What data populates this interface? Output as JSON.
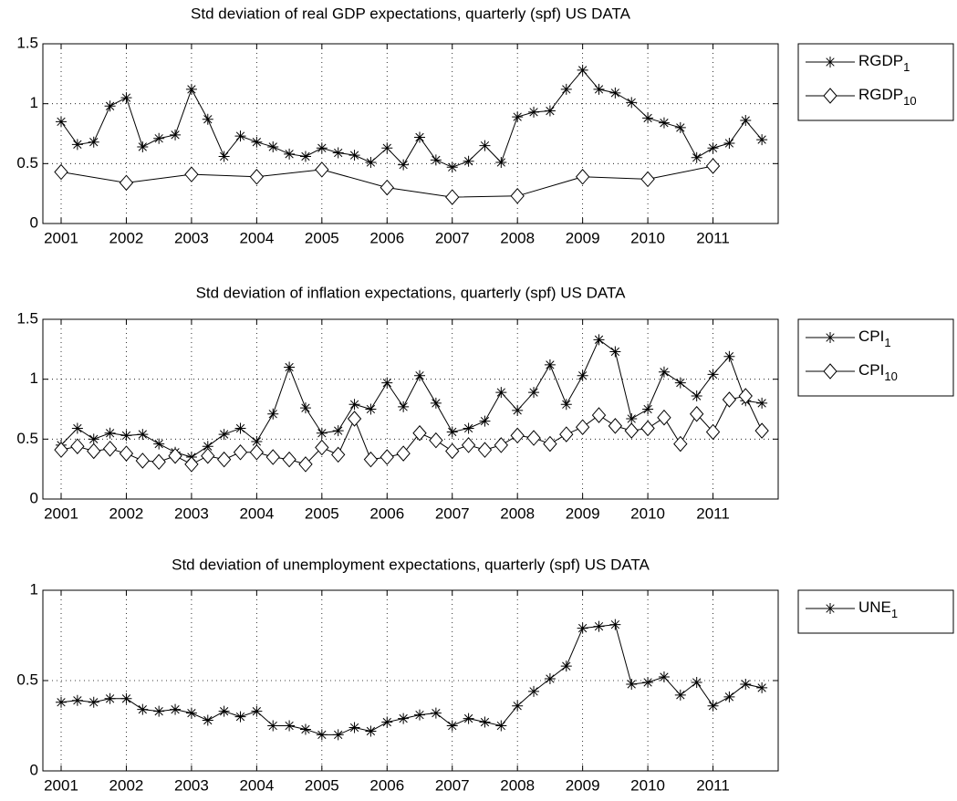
{
  "chart_data": [
    {
      "type": "line",
      "title": "Std deviation of real GDP expectations, quarterly (spf) US DATA",
      "xlim": [
        2000.72,
        2012
      ],
      "ylim": [
        0,
        1.5
      ],
      "xticks": [
        2001,
        2002,
        2003,
        2004,
        2005,
        2006,
        2007,
        2008,
        2009,
        2010,
        2011
      ],
      "yticks": [
        0,
        0.5,
        1,
        1.5
      ],
      "grid": true,
      "legend": "outside-right",
      "series": [
        {
          "name": "RGDP_1",
          "color": "#000000",
          "marker": "asterisk",
          "x": [
            2001,
            2001.25,
            2001.5,
            2001.75,
            2002,
            2002.25,
            2002.5,
            2002.75,
            2003,
            2003.25,
            2003.5,
            2003.75,
            2004,
            2004.25,
            2004.5,
            2004.75,
            2005,
            2005.25,
            2005.5,
            2005.75,
            2006,
            2006.25,
            2006.5,
            2006.75,
            2007,
            2007.25,
            2007.5,
            2007.75,
            2008,
            2008.25,
            2008.5,
            2008.75,
            2009,
            2009.25,
            2009.5,
            2009.75,
            2010,
            2010.25,
            2010.5,
            2010.75,
            2011,
            2011.25,
            2011.5,
            2011.75
          ],
          "values": [
            0.85,
            0.66,
            0.68,
            0.98,
            1.05,
            0.64,
            0.71,
            0.74,
            1.12,
            0.87,
            0.56,
            0.73,
            0.68,
            0.64,
            0.58,
            0.56,
            0.63,
            0.59,
            0.57,
            0.51,
            0.63,
            0.49,
            0.72,
            0.53,
            0.47,
            0.52,
            0.65,
            0.51,
            0.89,
            0.93,
            0.94,
            1.12,
            1.28,
            1.12,
            1.09,
            1.01,
            0.88,
            0.84,
            0.8,
            0.55,
            0.63,
            0.67,
            0.86,
            0.7
          ]
        },
        {
          "name": "RGDP_10",
          "color": "#000000",
          "marker": "diamond",
          "x": [
            2001,
            2002,
            2003,
            2004,
            2005,
            2006,
            2007,
            2008,
            2009,
            2010,
            2011
          ],
          "values": [
            0.43,
            0.34,
            0.41,
            0.39,
            0.45,
            0.3,
            0.22,
            0.23,
            0.39,
            0.37,
            0.48
          ]
        }
      ]
    },
    {
      "type": "line",
      "title": "Std deviation of inflation expectations, quarterly (spf) US DATA",
      "xlim": [
        2000.72,
        2012
      ],
      "ylim": [
        0,
        1.5
      ],
      "xticks": [
        2001,
        2002,
        2003,
        2004,
        2005,
        2006,
        2007,
        2008,
        2009,
        2010,
        2011
      ],
      "yticks": [
        0,
        0.5,
        1,
        1.5
      ],
      "grid": true,
      "legend": "outside-right",
      "x": [
        2001,
        2001.25,
        2001.5,
        2001.75,
        2002,
        2002.25,
        2002.5,
        2002.75,
        2003,
        2003.25,
        2003.5,
        2003.75,
        2004,
        2004.25,
        2004.5,
        2004.75,
        2005,
        2005.25,
        2005.5,
        2005.75,
        2006,
        2006.25,
        2006.5,
        2006.75,
        2007,
        2007.25,
        2007.5,
        2007.75,
        2008,
        2008.25,
        2008.5,
        2008.75,
        2009,
        2009.25,
        2009.5,
        2009.75,
        2010,
        2010.25,
        2010.5,
        2010.75,
        2011,
        2011.25,
        2011.5,
        2011.75
      ],
      "series": [
        {
          "name": "CPI_1",
          "color": "#000000",
          "marker": "asterisk",
          "values": [
            0.45,
            0.59,
            0.5,
            0.55,
            0.53,
            0.54,
            0.46,
            0.39,
            0.35,
            0.44,
            0.54,
            0.59,
            0.48,
            0.71,
            1.1,
            0.76,
            0.55,
            0.57,
            0.79,
            0.75,
            0.97,
            0.77,
            1.03,
            0.8,
            0.56,
            0.59,
            0.65,
            0.89,
            0.74,
            0.89,
            1.12,
            0.79,
            1.03,
            1.33,
            1.23,
            0.67,
            0.75,
            1.06,
            0.97,
            0.86,
            1.04,
            1.19,
            0.82,
            0.8
          ]
        },
        {
          "name": "CPI_10",
          "color": "#000000",
          "marker": "diamond",
          "values": [
            0.41,
            0.44,
            0.4,
            0.42,
            0.38,
            0.32,
            0.31,
            0.36,
            0.29,
            0.36,
            0.33,
            0.39,
            0.39,
            0.35,
            0.33,
            0.29,
            0.43,
            0.37,
            0.67,
            0.33,
            0.35,
            0.38,
            0.55,
            0.49,
            0.4,
            0.45,
            0.41,
            0.45,
            0.53,
            0.51,
            0.46,
            0.54,
            0.6,
            0.7,
            0.61,
            0.57,
            0.59,
            0.68,
            0.46,
            0.71,
            0.56,
            0.83,
            0.86,
            0.57
          ]
        }
      ]
    },
    {
      "type": "line",
      "title": "Std deviation of unemployment expectations, quarterly (spf) US DATA",
      "xlim": [
        2000.72,
        2012
      ],
      "ylim": [
        0,
        1
      ],
      "xticks": [
        2001,
        2002,
        2003,
        2004,
        2005,
        2006,
        2007,
        2008,
        2009,
        2010,
        2011
      ],
      "yticks": [
        0,
        0.5,
        1
      ],
      "grid": true,
      "legend": "outside-right",
      "x": [
        2001,
        2001.25,
        2001.5,
        2001.75,
        2002,
        2002.25,
        2002.5,
        2002.75,
        2003,
        2003.25,
        2003.5,
        2003.75,
        2004,
        2004.25,
        2004.5,
        2004.75,
        2005,
        2005.25,
        2005.5,
        2005.75,
        2006,
        2006.25,
        2006.5,
        2006.75,
        2007,
        2007.25,
        2007.5,
        2007.75,
        2008,
        2008.25,
        2008.5,
        2008.75,
        2009,
        2009.25,
        2009.5,
        2009.75,
        2010,
        2010.25,
        2010.5,
        2010.75,
        2011,
        2011.25,
        2011.5,
        2011.75
      ],
      "series": [
        {
          "name": "UNE_1",
          "color": "#000000",
          "marker": "asterisk",
          "values": [
            0.38,
            0.39,
            0.38,
            0.4,
            0.4,
            0.34,
            0.33,
            0.34,
            0.32,
            0.28,
            0.33,
            0.3,
            0.33,
            0.25,
            0.25,
            0.23,
            0.2,
            0.2,
            0.24,
            0.22,
            0.27,
            0.29,
            0.31,
            0.32,
            0.25,
            0.29,
            0.27,
            0.25,
            0.36,
            0.44,
            0.51,
            0.58,
            0.79,
            0.8,
            0.81,
            0.48,
            0.49,
            0.52,
            0.42,
            0.49,
            0.36,
            0.41,
            0.48,
            0.46
          ]
        }
      ]
    }
  ]
}
